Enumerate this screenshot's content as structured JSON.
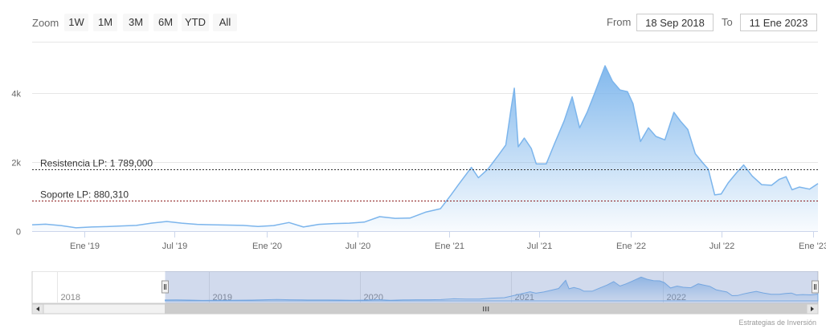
{
  "toolbar": {
    "zoom_label": "Zoom",
    "buttons": [
      "1W",
      "1M",
      "3M",
      "6M",
      "YTD",
      "All"
    ],
    "from_label": "From",
    "from_value": "18 Sep 2018",
    "to_label": "To",
    "to_value": "11 Ene 2023"
  },
  "credits": "Estrategias de Inversión",
  "colors": {
    "line": "#7cb5ec",
    "fill_top": "#7cb5ec",
    "resistance_line": "#333333",
    "support_line": "#8b1a1a",
    "navigator_mask": "#6685c2"
  },
  "chart_data": {
    "type": "area",
    "x_start": "2018-09-18",
    "x_end": "2023-01-11",
    "ylim": [
      0,
      5500
    ],
    "y_ticks": [
      0,
      2000,
      4000
    ],
    "y_tick_labels": [
      "0",
      "2k",
      "4k"
    ],
    "x_tick_dates": [
      "2019-01-01",
      "2019-07-01",
      "2020-01-01",
      "2020-07-01",
      "2021-01-01",
      "2021-07-01",
      "2022-01-01",
      "2022-07-01",
      "2023-01-01"
    ],
    "x_tick_labels": [
      "Ene '19",
      "Jul '19",
      "Ene '20",
      "Jul '20",
      "Ene '21",
      "Jul '21",
      "Ene '22",
      "Jul '22",
      "Ene '23"
    ],
    "series": [
      {
        "points": [
          [
            "2018-09-18",
            185
          ],
          [
            "2018-10-15",
            200
          ],
          [
            "2018-11-15",
            160
          ],
          [
            "2018-12-15",
            95
          ],
          [
            "2019-01-15",
            120
          ],
          [
            "2019-02-15",
            130
          ],
          [
            "2019-03-15",
            150
          ],
          [
            "2019-04-15",
            165
          ],
          [
            "2019-05-15",
            230
          ],
          [
            "2019-06-15",
            280
          ],
          [
            "2019-07-15",
            230
          ],
          [
            "2019-08-15",
            195
          ],
          [
            "2019-09-15",
            185
          ],
          [
            "2019-10-15",
            175
          ],
          [
            "2019-11-15",
            165
          ],
          [
            "2019-12-15",
            135
          ],
          [
            "2020-01-15",
            160
          ],
          [
            "2020-02-15",
            250
          ],
          [
            "2020-03-15",
            120
          ],
          [
            "2020-04-15",
            195
          ],
          [
            "2020-05-15",
            220
          ],
          [
            "2020-06-15",
            230
          ],
          [
            "2020-07-15",
            260
          ],
          [
            "2020-08-15",
            420
          ],
          [
            "2020-09-15",
            370
          ],
          [
            "2020-10-15",
            380
          ],
          [
            "2020-11-15",
            550
          ],
          [
            "2020-12-15",
            650
          ],
          [
            "2021-01-05",
            1050
          ],
          [
            "2021-01-20",
            1350
          ],
          [
            "2021-02-15",
            1850
          ],
          [
            "2021-03-01",
            1550
          ],
          [
            "2021-03-20",
            1800
          ],
          [
            "2021-04-10",
            2200
          ],
          [
            "2021-04-25",
            2500
          ],
          [
            "2021-05-05",
            3500
          ],
          [
            "2021-05-12",
            4150
          ],
          [
            "2021-05-20",
            2450
          ],
          [
            "2021-06-01",
            2700
          ],
          [
            "2021-06-15",
            2400
          ],
          [
            "2021-06-25",
            1950
          ],
          [
            "2021-07-15",
            1950
          ],
          [
            "2021-08-01",
            2550
          ],
          [
            "2021-08-20",
            3200
          ],
          [
            "2021-09-05",
            3900
          ],
          [
            "2021-09-20",
            3000
          ],
          [
            "2021-10-05",
            3450
          ],
          [
            "2021-10-20",
            4000
          ],
          [
            "2021-11-10",
            4800
          ],
          [
            "2021-11-25",
            4350
          ],
          [
            "2021-12-10",
            4100
          ],
          [
            "2021-12-25",
            4050
          ],
          [
            "2022-01-05",
            3700
          ],
          [
            "2022-01-20",
            2600
          ],
          [
            "2022-02-05",
            3000
          ],
          [
            "2022-02-20",
            2750
          ],
          [
            "2022-03-10",
            2650
          ],
          [
            "2022-03-28",
            3450
          ],
          [
            "2022-04-10",
            3200
          ],
          [
            "2022-04-25",
            2950
          ],
          [
            "2022-05-10",
            2250
          ],
          [
            "2022-05-25",
            1980
          ],
          [
            "2022-06-05",
            1800
          ],
          [
            "2022-06-18",
            1050
          ],
          [
            "2022-07-01",
            1080
          ],
          [
            "2022-07-15",
            1400
          ],
          [
            "2022-08-01",
            1700
          ],
          [
            "2022-08-15",
            1920
          ],
          [
            "2022-09-01",
            1600
          ],
          [
            "2022-09-20",
            1350
          ],
          [
            "2022-10-10",
            1330
          ],
          [
            "2022-10-25",
            1500
          ],
          [
            "2022-11-08",
            1580
          ],
          [
            "2022-11-20",
            1200
          ],
          [
            "2022-12-05",
            1280
          ],
          [
            "2022-12-25",
            1220
          ],
          [
            "2023-01-11",
            1380
          ]
        ]
      }
    ],
    "annotations": [
      {
        "label": "Resistencia LP: 1 789,000",
        "value": 1789
      },
      {
        "label": "Soporte LP: 880,310",
        "value": 880.31
      }
    ],
    "navigator": {
      "x_start": "2017-11-01",
      "x_end": "2023-01-11",
      "selection_start": "2018-09-18",
      "selection_end": "2023-01-11",
      "year_labels": [
        "2018",
        "2019",
        "2020",
        "2021",
        "2022"
      ],
      "year_dates": [
        "2018-01-01",
        "2019-01-01",
        "2020-01-01",
        "2021-01-01",
        "2022-01-01"
      ]
    }
  }
}
